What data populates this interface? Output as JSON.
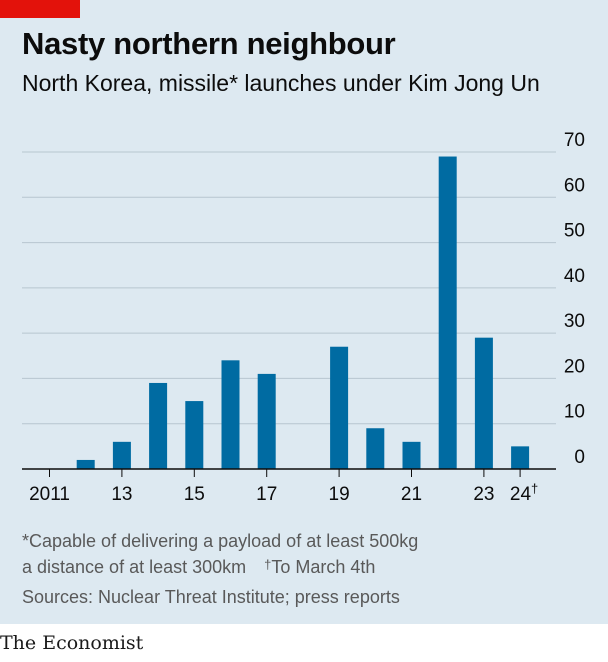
{
  "header": {
    "title": "Nasty northern neighbour",
    "subtitle": "North Korea, missile* launches under Kim Jong Un"
  },
  "footnotes": {
    "line1": "*Capable of delivering a payload of at least 500kg",
    "line2": "a distance of at least 300km",
    "dagger": "†",
    "line2b": "To March 4th",
    "sources": "Sources: Nuclear Threat Institute; press reports"
  },
  "brand": "The Economist",
  "colors": {
    "bar": "#006ba2",
    "panel": "#dde9f1",
    "accent": "#e3120b",
    "grid": "#b7c6cf"
  },
  "chart_data": {
    "type": "bar",
    "title": "Nasty northern neighbour",
    "subtitle": "North Korea, missile* launches under Kim Jong Un",
    "categories": [
      "2011",
      "2012",
      "2013",
      "2014",
      "2015",
      "2016",
      "2017",
      "2018",
      "2019",
      "2020",
      "2021",
      "2022",
      "2023",
      "2024"
    ],
    "values": [
      0,
      2,
      6,
      19,
      15,
      24,
      21,
      0,
      27,
      9,
      6,
      69,
      29,
      5
    ],
    "x_tick_labels": [
      {
        "category": "2011",
        "label": "2011"
      },
      {
        "category": "2013",
        "label": "13"
      },
      {
        "category": "2015",
        "label": "15"
      },
      {
        "category": "2017",
        "label": "17"
      },
      {
        "category": "2019",
        "label": "19"
      },
      {
        "category": "2021",
        "label": "21"
      },
      {
        "category": "2023",
        "label": "23"
      },
      {
        "category": "2024",
        "label": "24†"
      }
    ],
    "y_ticks": [
      0,
      10,
      20,
      30,
      40,
      50,
      60,
      70
    ],
    "ylim": [
      0,
      70
    ],
    "grid": true,
    "y_axis_side": "right"
  }
}
